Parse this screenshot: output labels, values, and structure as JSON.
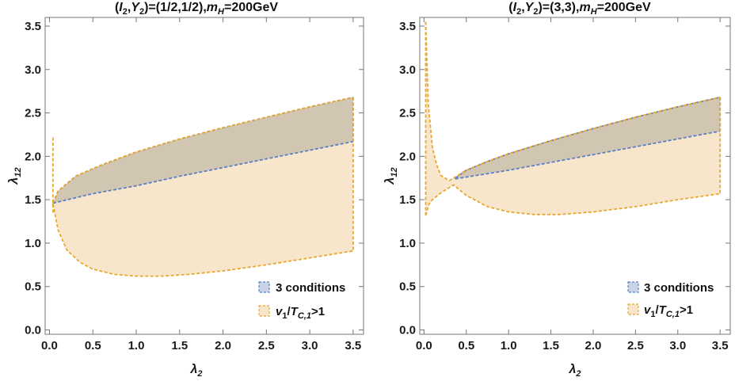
{
  "chart_data": [
    {
      "type": "area",
      "title": "(I₂,Y₂)=(1/2,1/2),mₕ=200GeV",
      "title_parts": {
        "pre": "(",
        "a": "I",
        "a_sub": "2",
        "mid": ",",
        "b": "Y",
        "b_sub": "2",
        "post": ")=(1/2,1/2),",
        "c": "m",
        "c_sub": "H",
        "tail": "=200GeV"
      },
      "xlabel": "λ₂",
      "ylabel": "λ₁₂",
      "xlim": [
        -0.05,
        3.62
      ],
      "ylim": [
        -0.05,
        3.6
      ],
      "xticks": [
        "0.0",
        "0.5",
        "1.0",
        "1.5",
        "2.0",
        "2.5",
        "3.0",
        "3.5"
      ],
      "yticks": [
        "0.0",
        "0.5",
        "1.0",
        "1.5",
        "2.0",
        "2.5",
        "3.0",
        "3.5"
      ],
      "grid": false,
      "legend_position": "bottom-right",
      "series": [
        {
          "name": "3 conditions",
          "color": "#5b7ec4",
          "fill": "#c9bfad",
          "upper": {
            "x": [
              0.04,
              0.1,
              0.3,
              0.6,
              1.0,
              1.5,
              2.0,
              2.5,
              3.0,
              3.5
            ],
            "y": [
              1.46,
              1.6,
              1.77,
              1.9,
              2.05,
              2.2,
              2.33,
              2.45,
              2.57,
              2.68
            ]
          },
          "lower": {
            "x": [
              0.04,
              0.5,
              1.0,
              1.5,
              2.0,
              2.5,
              3.0,
              3.5
            ],
            "y": [
              1.46,
              1.57,
              1.66,
              1.77,
              1.87,
              1.97,
              2.07,
              2.17
            ]
          }
        },
        {
          "name": "v₁/Tᴄ,₁>1",
          "color": "#e8a82e",
          "fill": "#f8e6cc",
          "upper": {
            "x": [
              0.04,
              0.1,
              0.3,
              0.6,
              1.0,
              1.5,
              2.0,
              2.5,
              3.0,
              3.5
            ],
            "y": [
              1.46,
              1.6,
              1.77,
              1.9,
              2.05,
              2.2,
              2.33,
              2.45,
              2.57,
              2.68
            ]
          },
          "lower": {
            "x": [
              0.04,
              0.1,
              0.2,
              0.35,
              0.5,
              0.75,
              1.0,
              1.3,
              1.6,
              2.0,
              2.5,
              3.0,
              3.5
            ],
            "y": [
              1.45,
              1.15,
              0.92,
              0.78,
              0.7,
              0.64,
              0.62,
              0.62,
              0.64,
              0.68,
              0.75,
              0.83,
              0.91
            ]
          },
          "spike": {
            "x": [
              0.04,
              0.04
            ],
            "y": [
              1.35,
              2.22
            ]
          }
        }
      ],
      "legend": {
        "entry1": "3 conditions",
        "entry2": {
          "v": "v",
          "v_sub": "1",
          "slash": "/",
          "t": "T",
          "t_sub": "C,1",
          "rest": ">1"
        }
      }
    },
    {
      "type": "area",
      "title": "(I₂,Y₂)=(3,3),mₕ=200GeV",
      "title_parts": {
        "pre": "(",
        "a": "I",
        "a_sub": "2",
        "mid": ",",
        "b": "Y",
        "b_sub": "2",
        "post": ")=(3,3),",
        "c": "m",
        "c_sub": "H",
        "tail": "=200GeV"
      },
      "xlabel": "λ₂",
      "ylabel": "λ₁₂",
      "xlim": [
        -0.05,
        3.62
      ],
      "ylim": [
        -0.05,
        3.6
      ],
      "xticks": [
        "0.0",
        "0.5",
        "1.0",
        "1.5",
        "2.0",
        "2.5",
        "3.0",
        "3.5"
      ],
      "yticks": [
        "0.0",
        "0.5",
        "1.0",
        "1.5",
        "2.0",
        "2.5",
        "3.0",
        "3.5"
      ],
      "grid": false,
      "legend_position": "bottom-right",
      "series": [
        {
          "name": "3 conditions",
          "color": "#5b7ec4",
          "fill": "#c9bfad",
          "upper": {
            "x": [
              0.37,
              0.5,
              0.75,
              1.0,
              1.5,
              2.0,
              2.5,
              3.0,
              3.5
            ],
            "y": [
              1.75,
              1.84,
              1.94,
              2.03,
              2.18,
              2.32,
              2.45,
              2.57,
              2.68
            ]
          },
          "lower": {
            "x": [
              0.37,
              1.0,
              1.5,
              2.0,
              2.5,
              3.0,
              3.5
            ],
            "y": [
              1.74,
              1.84,
              1.93,
              2.02,
              2.11,
              2.2,
              2.29
            ]
          }
        },
        {
          "name": "v₁/Tᴄ,₁>1",
          "color": "#e8a82e",
          "fill": "#f8e6cc",
          "upper": {
            "x": [
              0.02,
              0.05,
              0.1,
              0.15,
              0.2,
              0.3,
              0.5,
              0.75,
              1.0,
              1.5,
              2.0,
              2.5,
              3.0,
              3.5
            ],
            "y": [
              3.55,
              2.6,
              2.1,
              1.9,
              1.78,
              1.72,
              1.84,
              1.94,
              2.03,
              2.18,
              2.32,
              2.45,
              2.57,
              2.68
            ]
          },
          "lower": {
            "x": [
              0.02,
              0.06,
              0.1,
              0.2,
              0.35,
              0.5,
              0.75,
              1.0,
              1.3,
              1.6,
              2.0,
              2.5,
              3.0,
              3.5
            ],
            "y": [
              1.32,
              1.45,
              1.5,
              1.58,
              1.67,
              1.55,
              1.42,
              1.36,
              1.33,
              1.33,
              1.36,
              1.42,
              1.5,
              1.57
            ]
          }
        }
      ],
      "legend": {
        "entry1": "3 conditions",
        "entry2": {
          "v": "v",
          "v_sub": "1",
          "slash": "/",
          "t": "T",
          "t_sub": "C,1",
          "rest": ">1"
        }
      }
    }
  ]
}
